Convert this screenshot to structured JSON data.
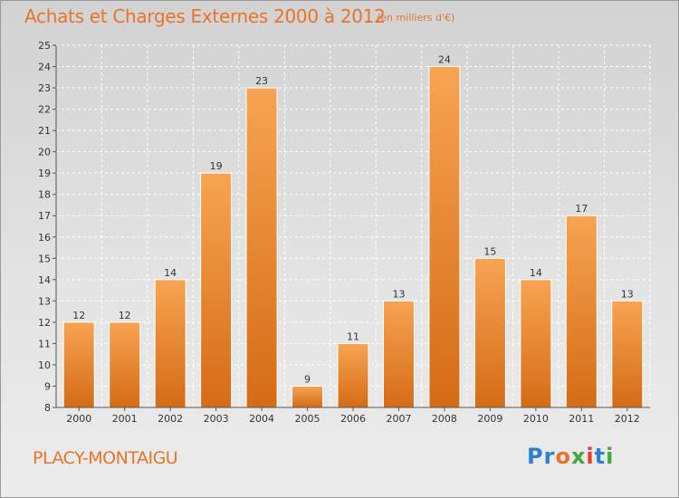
{
  "title": "Achats et Charges Externes 2000 à 2012",
  "unit": "(en milliers d'€)",
  "place": "PLACY-MONTAIGU",
  "logo": [
    "Pr",
    "o",
    "x",
    "i",
    "t",
    "i"
  ],
  "colors": {
    "bar_light": "#f7a452",
    "bar_dark": "#d56b16",
    "title": "#e8742a"
  },
  "chart_data": {
    "type": "bar",
    "categories": [
      "2000",
      "2001",
      "2002",
      "2003",
      "2004",
      "2005",
      "2006",
      "2007",
      "2008",
      "2009",
      "2010",
      "2011",
      "2012"
    ],
    "values": [
      12,
      12,
      14,
      19,
      23,
      9,
      11,
      13,
      24,
      15,
      14,
      17,
      13
    ],
    "ylim": [
      8,
      25
    ],
    "yticks": [
      8,
      9,
      10,
      11,
      12,
      13,
      14,
      15,
      16,
      17,
      18,
      19,
      20,
      21,
      22,
      23,
      24,
      25
    ],
    "grid": true
  }
}
